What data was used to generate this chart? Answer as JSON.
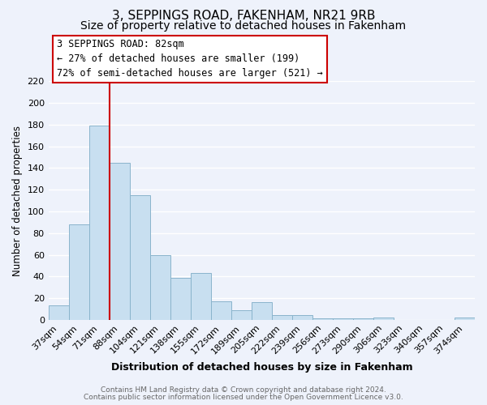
{
  "title": "3, SEPPINGS ROAD, FAKENHAM, NR21 9RB",
  "subtitle": "Size of property relative to detached houses in Fakenham",
  "xlabel": "Distribution of detached houses by size in Fakenham",
  "ylabel": "Number of detached properties",
  "bar_values": [
    13,
    88,
    179,
    145,
    115,
    60,
    39,
    43,
    17,
    9,
    16,
    4,
    4,
    1,
    1,
    1,
    2,
    0,
    0,
    0,
    2
  ],
  "bar_labels": [
    "37sqm",
    "54sqm",
    "71sqm",
    "88sqm",
    "104sqm",
    "121sqm",
    "138sqm",
    "155sqm",
    "172sqm",
    "189sqm",
    "205sqm",
    "222sqm",
    "239sqm",
    "256sqm",
    "273sqm",
    "290sqm",
    "306sqm",
    "323sqm",
    "340sqm",
    "357sqm",
    "374sqm"
  ],
  "bar_color": "#c8dff0",
  "bar_edge_color": "#8ab4cc",
  "vline_color": "#cc0000",
  "ylim": [
    0,
    220
  ],
  "yticks": [
    0,
    20,
    40,
    60,
    80,
    100,
    120,
    140,
    160,
    180,
    200,
    220
  ],
  "annotation_title": "3 SEPPINGS ROAD: 82sqm",
  "annotation_line1": "← 27% of detached houses are smaller (199)",
  "annotation_line2": "72% of semi-detached houses are larger (521) →",
  "annotation_box_edge": "#cc0000",
  "footer_line1": "Contains HM Land Registry data © Crown copyright and database right 2024.",
  "footer_line2": "Contains public sector information licensed under the Open Government Licence v3.0.",
  "background_color": "#eef2fb",
  "plot_background": "#eef2fb",
  "grid_color": "#ffffff",
  "title_fontsize": 11,
  "subtitle_fontsize": 10,
  "ann_fontsize": 8.5
}
